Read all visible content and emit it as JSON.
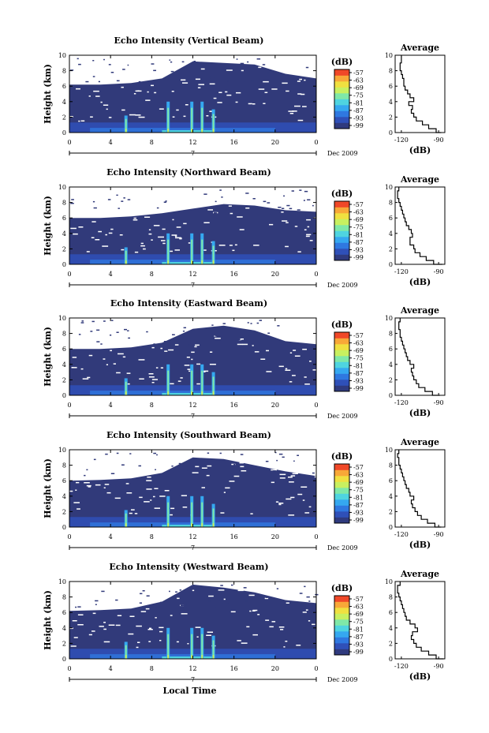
{
  "colors": {
    "background_echo": "#313a7a",
    "colorbar": [
      "#2f3a7e",
      "#2f50b8",
      "#2f78e0",
      "#35a8f0",
      "#4fd4e0",
      "#7fe8a8",
      "#c8f060",
      "#f0e040",
      "#f8a838",
      "#f04828"
    ],
    "line": "#000000"
  },
  "chart_data": [
    {
      "type": "heatmap",
      "title": "Echo Intensity (Vertical Beam)",
      "ylabel": "Height (km)",
      "xlabel": "",
      "date_label": "Dec 2009",
      "day_label": "7",
      "xticks": [
        "0",
        "4",
        "8",
        "12",
        "16",
        "20",
        "0"
      ],
      "yticks": [
        "0",
        "2",
        "4",
        "6",
        "8",
        "10"
      ],
      "xlim": [
        0,
        24
      ],
      "ylim": [
        0,
        10
      ],
      "colorbar": {
        "unit": "(dB)",
        "ticks": [
          "-57",
          "-63",
          "-69",
          "-75",
          "-81",
          "-87",
          "-93",
          "-99"
        ]
      },
      "features": {
        "cloud_top_km": [
          6.2,
          6.2,
          6.4,
          7.0,
          9.2,
          9.0,
          8.8,
          7.6,
          7.0
        ],
        "spikes_h": [
          5.5,
          9.6,
          11.9,
          12.9,
          14.0
        ]
      },
      "average_profile": {
        "title": "Average",
        "xlabel": "(dB)",
        "xticks": [
          "-120",
          "-90"
        ],
        "xlim": [
          -125,
          -85
        ],
        "yticks": [
          "0",
          "2",
          "4",
          "6",
          "8",
          "10"
        ],
        "height_km": [
          0,
          0.5,
          1,
          1.5,
          2,
          2.5,
          3,
          3.5,
          4,
          4.5,
          5,
          5.5,
          6,
          6.5,
          7,
          7.5,
          8,
          8.5,
          9,
          9.5,
          10
        ],
        "db": [
          -88,
          -92,
          -98,
          -103,
          -108,
          -110,
          -112,
          -111,
          -114,
          -110,
          -113,
          -115,
          -117,
          -118,
          -118,
          -119,
          -120,
          -121,
          -121,
          -120,
          -120
        ]
      }
    },
    {
      "type": "heatmap",
      "title": "Echo Intensity (Northward Beam)",
      "ylabel": "Height (km)",
      "xlabel": "",
      "date_label": "Dec 2009",
      "day_label": "7",
      "xticks": [
        "0",
        "4",
        "8",
        "12",
        "16",
        "20",
        "0"
      ],
      "yticks": [
        "0",
        "2",
        "4",
        "6",
        "8",
        "10"
      ],
      "xlim": [
        0,
        24
      ],
      "ylim": [
        0,
        10
      ],
      "colorbar": {
        "unit": "(dB)",
        "ticks": [
          "-57",
          "-63",
          "-69",
          "-75",
          "-81",
          "-87",
          "-93",
          "-99"
        ]
      },
      "features": {
        "cloud_top_km": [
          6.0,
          6.0,
          6.2,
          6.6,
          7.2,
          7.8,
          7.6,
          7.0,
          6.8
        ],
        "spikes_h": [
          5.5,
          9.6,
          11.9,
          12.9,
          14.0
        ]
      },
      "average_profile": {
        "title": "Average",
        "xlabel": "(dB)",
        "xticks": [
          "-120",
          "-90"
        ],
        "xlim": [
          -125,
          -85
        ],
        "yticks": [
          "0",
          "2",
          "4",
          "6",
          "8",
          "10"
        ],
        "height_km": [
          0,
          0.5,
          1,
          1.5,
          2,
          2.5,
          3,
          3.5,
          4,
          4.5,
          5,
          5.5,
          6,
          6.5,
          7,
          7.5,
          8,
          8.5,
          9,
          9.5,
          10
        ],
        "db": [
          -87,
          -94,
          -100,
          -105,
          -109,
          -110,
          -113,
          -113,
          -111,
          -112,
          -114,
          -116,
          -117,
          -118,
          -119,
          -120,
          -121,
          -122,
          -123,
          -123,
          -122
        ]
      }
    },
    {
      "type": "heatmap",
      "title": "Echo Intensity (Eastward Beam)",
      "ylabel": "Height (km)",
      "xlabel": "",
      "date_label": "Dec 2009",
      "day_label": "7",
      "xticks": [
        "0",
        "4",
        "8",
        "12",
        "16",
        "20",
        "0"
      ],
      "yticks": [
        "0",
        "2",
        "4",
        "6",
        "8",
        "10"
      ],
      "xlim": [
        0,
        24
      ],
      "ylim": [
        0,
        10
      ],
      "colorbar": {
        "unit": "(dB)",
        "ticks": [
          "-57",
          "-63",
          "-69",
          "-75",
          "-81",
          "-87",
          "-93",
          "-99"
        ]
      },
      "features": {
        "cloud_top_km": [
          6.0,
          6.0,
          6.2,
          6.8,
          8.6,
          9.0,
          8.4,
          7.0,
          6.6
        ],
        "spikes_h": [
          5.5,
          9.6,
          11.9,
          12.9,
          14.0
        ]
      },
      "average_profile": {
        "title": "Average",
        "xlabel": "(dB)",
        "xticks": [
          "-120",
          "-90"
        ],
        "xlim": [
          -125,
          -85
        ],
        "yticks": [
          "0",
          "2",
          "4",
          "6",
          "8",
          "10"
        ],
        "height_km": [
          0,
          0.5,
          1,
          1.5,
          2,
          2.5,
          3,
          3.5,
          4,
          4.5,
          5,
          5.5,
          6,
          6.5,
          7,
          7.5,
          8,
          8.5,
          9,
          9.5,
          10
        ],
        "db": [
          -89,
          -95,
          -101,
          -106,
          -108,
          -110,
          -111,
          -112,
          -110,
          -113,
          -115,
          -116,
          -117,
          -118,
          -119,
          -120,
          -121,
          -121,
          -122,
          -122,
          -121
        ]
      }
    },
    {
      "type": "heatmap",
      "title": "Echo Intensity (Southward Beam)",
      "ylabel": "Height (km)",
      "xlabel": "",
      "date_label": "Dec 2009",
      "day_label": "7",
      "xticks": [
        "0",
        "4",
        "8",
        "12",
        "16",
        "20",
        "0"
      ],
      "yticks": [
        "0",
        "2",
        "4",
        "6",
        "8",
        "10"
      ],
      "xlim": [
        0,
        24
      ],
      "ylim": [
        0,
        10
      ],
      "colorbar": {
        "unit": "(dB)",
        "ticks": [
          "-57",
          "-63",
          "-69",
          "-75",
          "-81",
          "-87",
          "-93",
          "-99"
        ]
      },
      "features": {
        "cloud_top_km": [
          6.0,
          6.1,
          6.3,
          7.0,
          9.0,
          8.8,
          8.0,
          7.2,
          6.6
        ],
        "spikes_h": [
          5.5,
          9.6,
          11.9,
          12.9,
          14.0
        ]
      },
      "average_profile": {
        "title": "Average",
        "xlabel": "(dB)",
        "xticks": [
          "-120",
          "-90"
        ],
        "xlim": [
          -125,
          -85
        ],
        "yticks": [
          "0",
          "2",
          "4",
          "6",
          "8",
          "10"
        ],
        "height_km": [
          0,
          0.5,
          1,
          1.5,
          2,
          2.5,
          3,
          3.5,
          4,
          4.5,
          5,
          5.5,
          6,
          6.5,
          7,
          7.5,
          8,
          8.5,
          9,
          9.5,
          10
        ],
        "db": [
          -88,
          -93,
          -99,
          -104,
          -107,
          -109,
          -111,
          -112,
          -110,
          -113,
          -114,
          -116,
          -117,
          -118,
          -119,
          -120,
          -121,
          -122,
          -122,
          -123,
          -122
        ]
      }
    },
    {
      "type": "heatmap",
      "title": "Echo Intensity (Westward Beam)",
      "ylabel": "Height (km)",
      "xlabel": "Local Time",
      "date_label": "Dec 2009",
      "day_label": "7",
      "xticks": [
        "0",
        "4",
        "8",
        "12",
        "16",
        "20",
        "0"
      ],
      "yticks": [
        "0",
        "2",
        "4",
        "6",
        "8",
        "10"
      ],
      "xlim": [
        0,
        24
      ],
      "ylim": [
        0,
        10
      ],
      "colorbar": {
        "unit": "(dB)",
        "ticks": [
          "-57",
          "-63",
          "-69",
          "-75",
          "-81",
          "-87",
          "-93",
          "-99"
        ]
      },
      "features": {
        "cloud_top_km": [
          6.2,
          6.3,
          6.5,
          7.4,
          9.6,
          9.2,
          8.6,
          7.6,
          7.2
        ],
        "spikes_h": [
          5.5,
          9.6,
          11.9,
          12.9,
          14.0
        ]
      },
      "average_profile": {
        "title": "Average",
        "xlabel": "(dB)",
        "xticks": [
          "-120",
          "-90"
        ],
        "xlim": [
          -125,
          -85
        ],
        "yticks": [
          "0",
          "2",
          "4",
          "6",
          "8",
          "10"
        ],
        "height_km": [
          0,
          0.5,
          1,
          1.5,
          2,
          2.5,
          3,
          3.5,
          4,
          4.5,
          5,
          5.5,
          6,
          6.5,
          7,
          7.5,
          8,
          8.5,
          9,
          9.5,
          10
        ],
        "db": [
          -86,
          -92,
          -98,
          -104,
          -108,
          -110,
          -112,
          -111,
          -107,
          -109,
          -113,
          -116,
          -117,
          -118,
          -119,
          -120,
          -121,
          -122,
          -123,
          -123,
          -121
        ]
      }
    }
  ]
}
